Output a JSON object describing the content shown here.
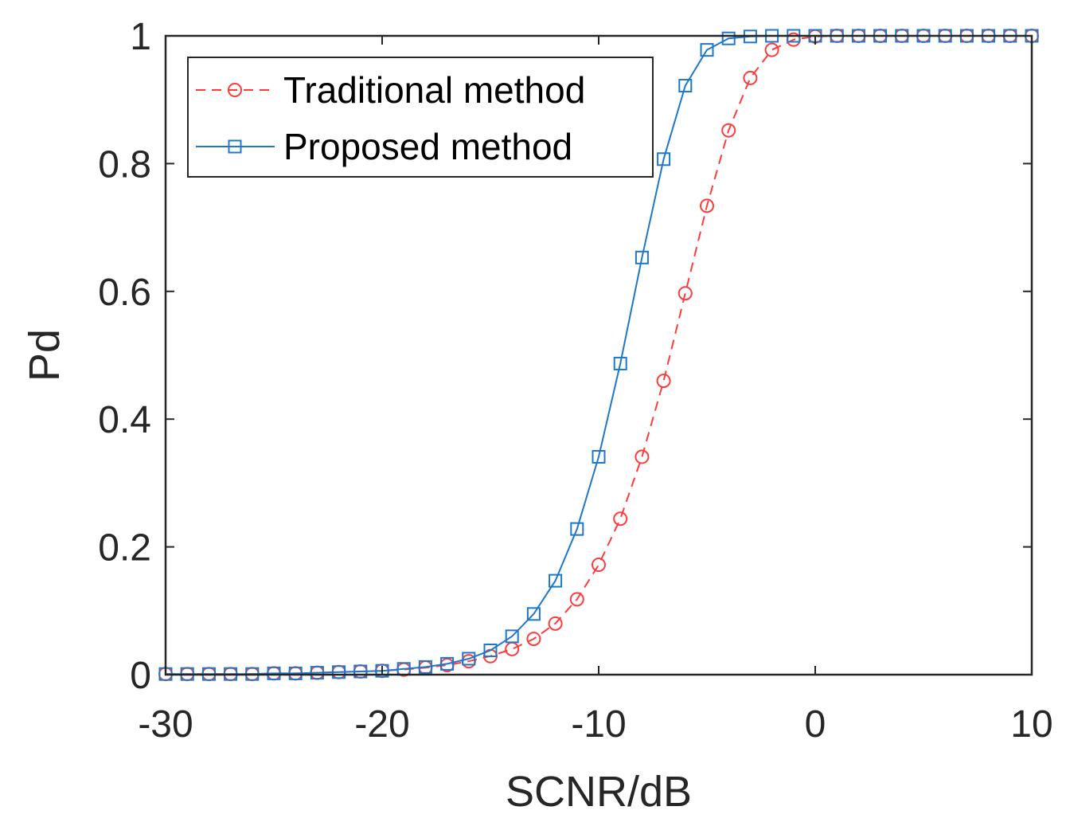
{
  "chart_data": {
    "type": "line",
    "xlabel": "SCNR/dB",
    "ylabel": "Pd",
    "xlim": [
      -30,
      10
    ],
    "ylim": [
      0,
      1
    ],
    "xticks": [
      "-30",
      "-20",
      "-10",
      "0",
      "10"
    ],
    "yticks": [
      "0",
      "0.2",
      "0.4",
      "0.6",
      "0.8",
      "1"
    ],
    "grid": false,
    "legend_position": "top-left",
    "x": [
      -30,
      -29,
      -28,
      -27,
      -26,
      -25,
      -24,
      -23,
      -22,
      -21,
      -20,
      -19,
      -18,
      -17,
      -16,
      -15,
      -14,
      -13,
      -12,
      -11,
      -10,
      -9,
      -8,
      -7,
      -6,
      -5,
      -4,
      -3,
      -2,
      -1,
      0,
      1,
      2,
      3,
      4,
      5,
      6,
      7,
      8,
      9,
      10
    ],
    "series": [
      {
        "name": "Traditional method",
        "color": "#ff3b3b",
        "line_style": "dashed",
        "marker": "circle",
        "values": [
          0.001,
          0.001,
          0.001,
          0.001,
          0.001,
          0.002,
          0.002,
          0.003,
          0.004,
          0.005,
          0.006,
          0.008,
          0.011,
          0.015,
          0.021,
          0.029,
          0.04,
          0.056,
          0.08,
          0.118,
          0.172,
          0.244,
          0.341,
          0.46,
          0.597,
          0.734,
          0.852,
          0.934,
          0.978,
          0.994,
          0.999,
          1,
          1,
          1,
          1,
          1,
          1,
          1,
          1,
          1,
          1
        ]
      },
      {
        "name": "Proposed method",
        "color": "#1f77c9",
        "line_style": "solid",
        "marker": "square",
        "values": [
          0.001,
          0.001,
          0.001,
          0.001,
          0.001,
          0.002,
          0.002,
          0.003,
          0.004,
          0.005,
          0.006,
          0.009,
          0.012,
          0.017,
          0.025,
          0.038,
          0.06,
          0.095,
          0.147,
          0.228,
          0.341,
          0.487,
          0.653,
          0.807,
          0.922,
          0.978,
          0.996,
          0.999,
          1,
          1,
          1,
          1,
          1,
          1,
          1,
          1,
          1,
          1,
          1,
          1,
          1
        ]
      }
    ]
  }
}
